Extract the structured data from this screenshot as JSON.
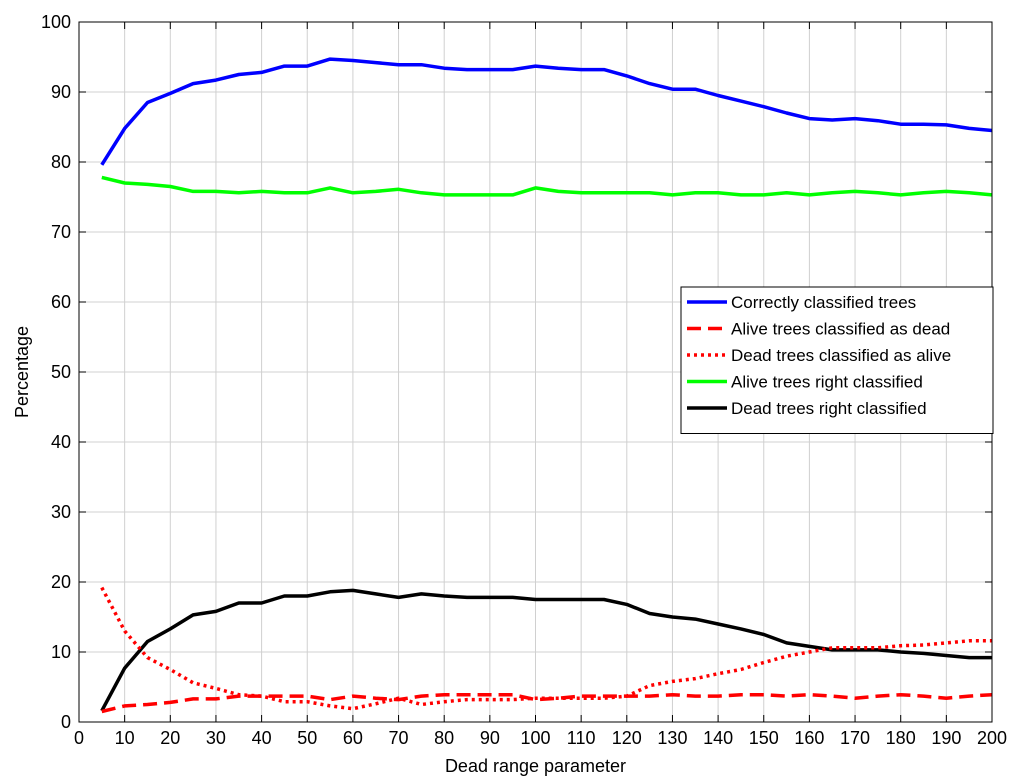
{
  "chart_data": {
    "type": "line",
    "xlabel": "Dead range parameter",
    "ylabel": "Percentage",
    "xlim": [
      0,
      200
    ],
    "ylim": [
      0,
      100
    ],
    "xticks": [
      0,
      10,
      20,
      30,
      40,
      50,
      60,
      70,
      80,
      90,
      100,
      110,
      120,
      130,
      140,
      150,
      160,
      170,
      180,
      190,
      200
    ],
    "yticks": [
      0,
      10,
      20,
      30,
      40,
      50,
      60,
      70,
      80,
      90,
      100
    ],
    "grid": true,
    "legend_position": "right",
    "x": [
      5,
      10,
      15,
      20,
      25,
      30,
      35,
      40,
      45,
      50,
      55,
      60,
      65,
      70,
      75,
      80,
      85,
      90,
      95,
      100,
      105,
      110,
      115,
      120,
      125,
      130,
      135,
      140,
      145,
      150,
      155,
      160,
      165,
      170,
      175,
      180,
      185,
      190,
      195,
      200
    ],
    "series": [
      {
        "name": "Correctly classified trees",
        "color": "#0000ff",
        "style": "solid",
        "values": [
          79.6,
          84.8,
          88.5,
          89.8,
          91.2,
          91.7,
          92.5,
          92.8,
          93.7,
          93.7,
          94.7,
          94.5,
          94.2,
          93.9,
          93.9,
          93.4,
          93.2,
          93.2,
          93.2,
          93.7,
          93.4,
          93.2,
          93.2,
          92.3,
          91.2,
          90.4,
          90.4,
          89.5,
          88.7,
          87.9,
          87.0,
          86.2,
          86.0,
          86.2,
          85.9,
          85.4,
          85.4,
          85.3,
          84.8,
          84.5
        ]
      },
      {
        "name": "Alive trees classified as dead",
        "color": "#ff0000",
        "style": "dashed",
        "values": [
          1.5,
          2.3,
          2.5,
          2.8,
          3.3,
          3.3,
          3.7,
          3.7,
          3.7,
          3.7,
          3.2,
          3.7,
          3.4,
          3.2,
          3.7,
          3.9,
          3.9,
          3.9,
          3.9,
          3.2,
          3.4,
          3.7,
          3.7,
          3.7,
          3.7,
          3.9,
          3.7,
          3.7,
          3.9,
          3.9,
          3.7,
          3.9,
          3.7,
          3.4,
          3.7,
          3.9,
          3.7,
          3.4,
          3.7,
          3.9
        ]
      },
      {
        "name": "Dead trees classified as alive",
        "color": "#ff0000",
        "style": "dotted",
        "values": [
          19.2,
          13.0,
          9.2,
          7.5,
          5.6,
          4.8,
          3.9,
          3.7,
          2.9,
          2.9,
          2.3,
          1.9,
          2.6,
          3.4,
          2.5,
          2.9,
          3.2,
          3.2,
          3.2,
          3.4,
          3.4,
          3.4,
          3.4,
          3.7,
          5.2,
          5.8,
          6.2,
          6.9,
          7.5,
          8.5,
          9.4,
          10.0,
          10.6,
          10.6,
          10.6,
          10.9,
          11.0,
          11.3,
          11.6,
          11.6
        ]
      },
      {
        "name": "Alive trees right classified",
        "color": "#00ff00",
        "style": "solid",
        "values": [
          77.8,
          77.0,
          76.8,
          76.5,
          75.8,
          75.8,
          75.6,
          75.8,
          75.6,
          75.6,
          76.3,
          75.6,
          75.8,
          76.1,
          75.6,
          75.3,
          75.3,
          75.3,
          75.3,
          76.3,
          75.8,
          75.6,
          75.6,
          75.6,
          75.6,
          75.3,
          75.6,
          75.6,
          75.3,
          75.3,
          75.6,
          75.3,
          75.6,
          75.8,
          75.6,
          75.3,
          75.6,
          75.8,
          75.6,
          75.3
        ]
      },
      {
        "name": "Dead trees right classified",
        "color": "#000000",
        "style": "solid",
        "values": [
          1.6,
          7.7,
          11.5,
          13.3,
          15.3,
          15.8,
          17.0,
          17.0,
          18.0,
          18.0,
          18.6,
          18.8,
          18.3,
          17.8,
          18.3,
          18.0,
          17.8,
          17.8,
          17.8,
          17.5,
          17.5,
          17.5,
          17.5,
          16.8,
          15.5,
          15.0,
          14.7,
          14.0,
          13.3,
          12.5,
          11.3,
          10.8,
          10.3,
          10.3,
          10.3,
          10.0,
          9.8,
          9.5,
          9.2,
          9.2
        ]
      }
    ]
  }
}
